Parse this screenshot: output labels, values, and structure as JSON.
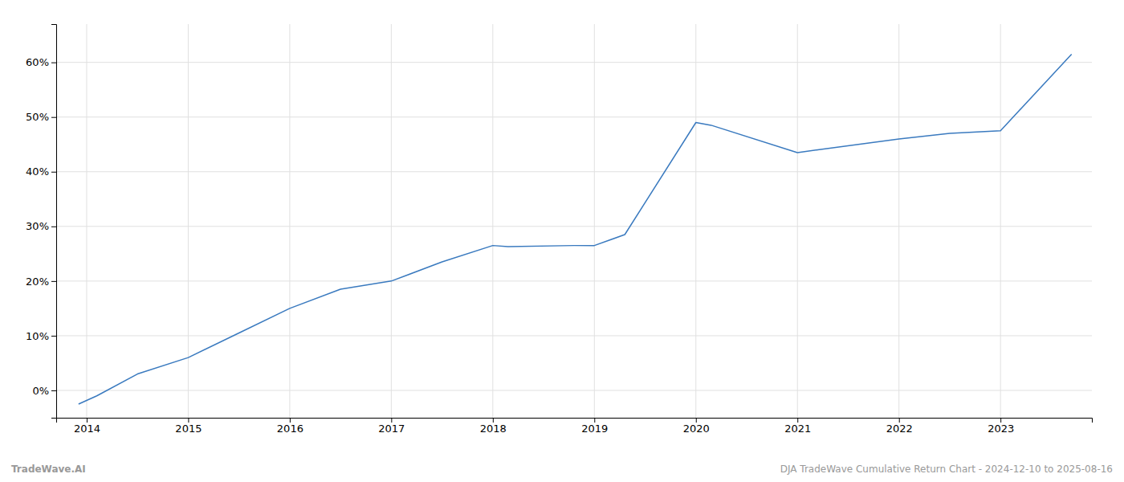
{
  "chart_data": {
    "type": "line",
    "x": [
      2013.92,
      2014.1,
      2014.5,
      2015.0,
      2015.5,
      2016.0,
      2016.5,
      2017.0,
      2017.5,
      2018.0,
      2018.15,
      2018.8,
      2019.0,
      2019.3,
      2020.0,
      2020.15,
      2021.0,
      2021.2,
      2022.0,
      2022.5,
      2023.0,
      2023.7
    ],
    "values": [
      -2.5,
      -1.0,
      3.0,
      6.0,
      10.5,
      15.0,
      18.5,
      20.0,
      23.5,
      26.5,
      26.3,
      26.5,
      26.5,
      28.5,
      49.0,
      48.5,
      43.5,
      44.0,
      46.0,
      47.0,
      47.5,
      61.5
    ],
    "color": "#3a7abf",
    "xlim": [
      2013.7,
      2023.9
    ],
    "xticks": [
      2014,
      2015,
      2016,
      2017,
      2018,
      2019,
      2020,
      2021,
      2022,
      2023
    ],
    "ylim": [
      -5,
      67
    ],
    "yticks": [
      {
        "value": 0,
        "label": "0%"
      },
      {
        "value": 10,
        "label": "10%"
      },
      {
        "value": 20,
        "label": "20%"
      },
      {
        "value": 30,
        "label": "30%"
      },
      {
        "value": 40,
        "label": "40%"
      },
      {
        "value": 50,
        "label": "50%"
      },
      {
        "value": 60,
        "label": "60%"
      }
    ],
    "grid": true,
    "annotations": [
      "TradeWave.AI",
      "DJA TradeWave Cumulative Return Chart - 2024-12-10 to 2025-08-16"
    ]
  }
}
